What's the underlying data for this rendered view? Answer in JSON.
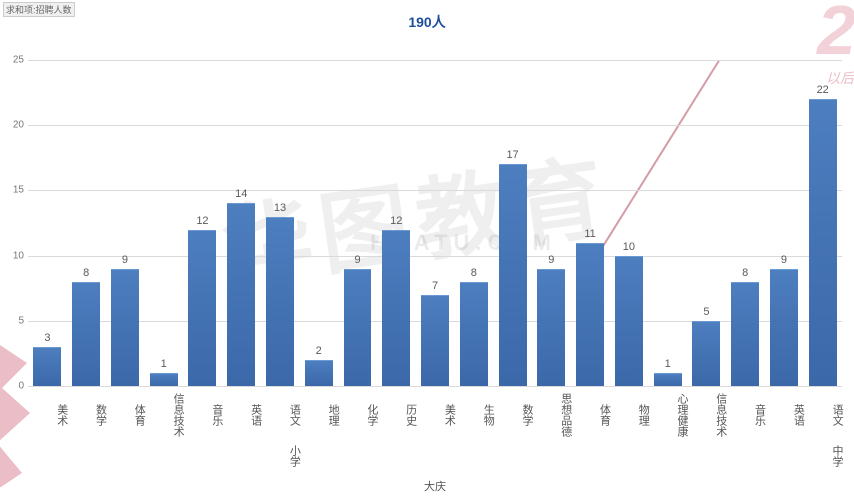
{
  "meta": {
    "top_left_label": "求和项:招聘人数",
    "title": "190人",
    "region": "大庆"
  },
  "chart": {
    "type": "bar",
    "ylim": [
      0,
      27
    ],
    "yticks": [
      0,
      5,
      10,
      15,
      20,
      25
    ],
    "grid_color": "#dadada",
    "bar_fill_top": "#4d7ebf",
    "bar_fill_bottom": "#3b68a8",
    "background_color": "#ffffff",
    "title_color": "#1f4e99",
    "title_fontsize": 14,
    "axis_label_color": "#555555",
    "axis_label_fontsize": 11,
    "value_label_color": "#5a5a5a",
    "value_label_fontsize": 11,
    "bar_width_ratio": 0.72,
    "groups": [
      {
        "name": "小学",
        "bars": [
          {
            "category": "美术",
            "value": 3
          },
          {
            "category": "数学",
            "value": 8
          },
          {
            "category": "体育",
            "value": 9
          },
          {
            "category": "信息技术",
            "value": 1
          },
          {
            "category": "音乐",
            "value": 12
          },
          {
            "category": "英语",
            "value": 14
          },
          {
            "category": "语文",
            "value": 13
          }
        ]
      },
      {
        "name": "中学",
        "bars": [
          {
            "category": "地理",
            "value": 2
          },
          {
            "category": "化学",
            "value": 9
          },
          {
            "category": "历史",
            "value": 12
          },
          {
            "category": "美术",
            "value": 7
          },
          {
            "category": "生物",
            "value": 8
          },
          {
            "category": "数学",
            "value": 17
          },
          {
            "category": "思想品德",
            "value": 9
          },
          {
            "category": "体育",
            "value": 11
          },
          {
            "category": "物理",
            "value": 10
          },
          {
            "category": "心理健康",
            "value": 1
          },
          {
            "category": "信息技术",
            "value": 5
          },
          {
            "category": "音乐",
            "value": 8
          },
          {
            "category": "英语",
            "value": 9
          },
          {
            "category": "语文",
            "value": 22
          }
        ]
      }
    ]
  },
  "watermarks": {
    "center_text": "华图教育",
    "center_sub": "HUATU.COM",
    "corner_number": "2",
    "corner_sub": "以后",
    "accent_color": "#c8465f"
  }
}
